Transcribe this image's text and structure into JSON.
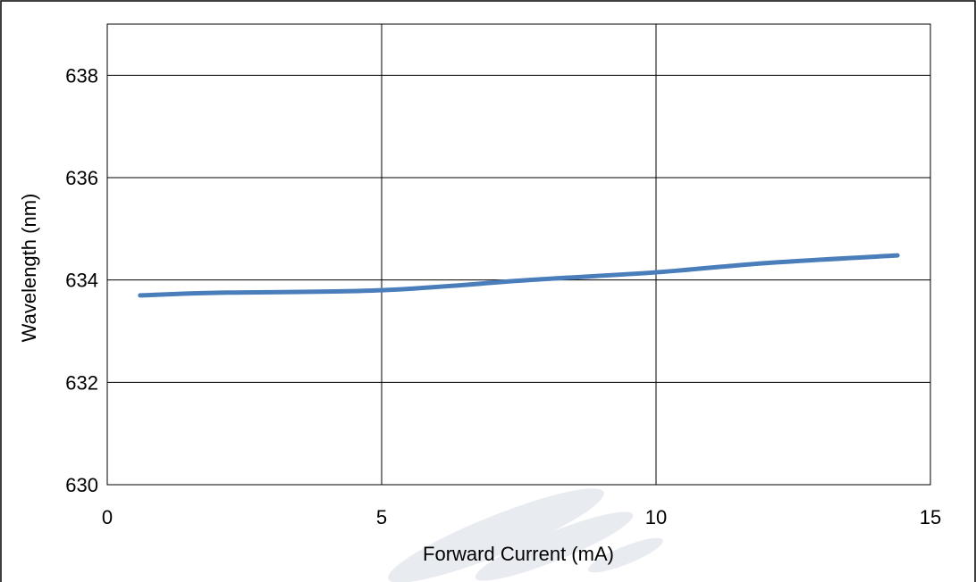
{
  "chart_data": {
    "type": "line",
    "xlabel": "Forward Current (mA)",
    "ylabel": "Wavelength (nm)",
    "xlim": [
      0,
      15
    ],
    "ylim": [
      630,
      639
    ],
    "xticks": [
      0,
      5,
      10,
      15
    ],
    "yticks": [
      630,
      632,
      634,
      636,
      638
    ],
    "grid": true,
    "legend": "none",
    "series": [
      {
        "color": "#4a7ebb",
        "x": [
          0.6,
          2,
          5,
          7.7,
          10,
          12,
          14.4
        ],
        "y": [
          633.7,
          633.75,
          633.8,
          634.0,
          634.15,
          634.33,
          634.48
        ]
      }
    ]
  }
}
